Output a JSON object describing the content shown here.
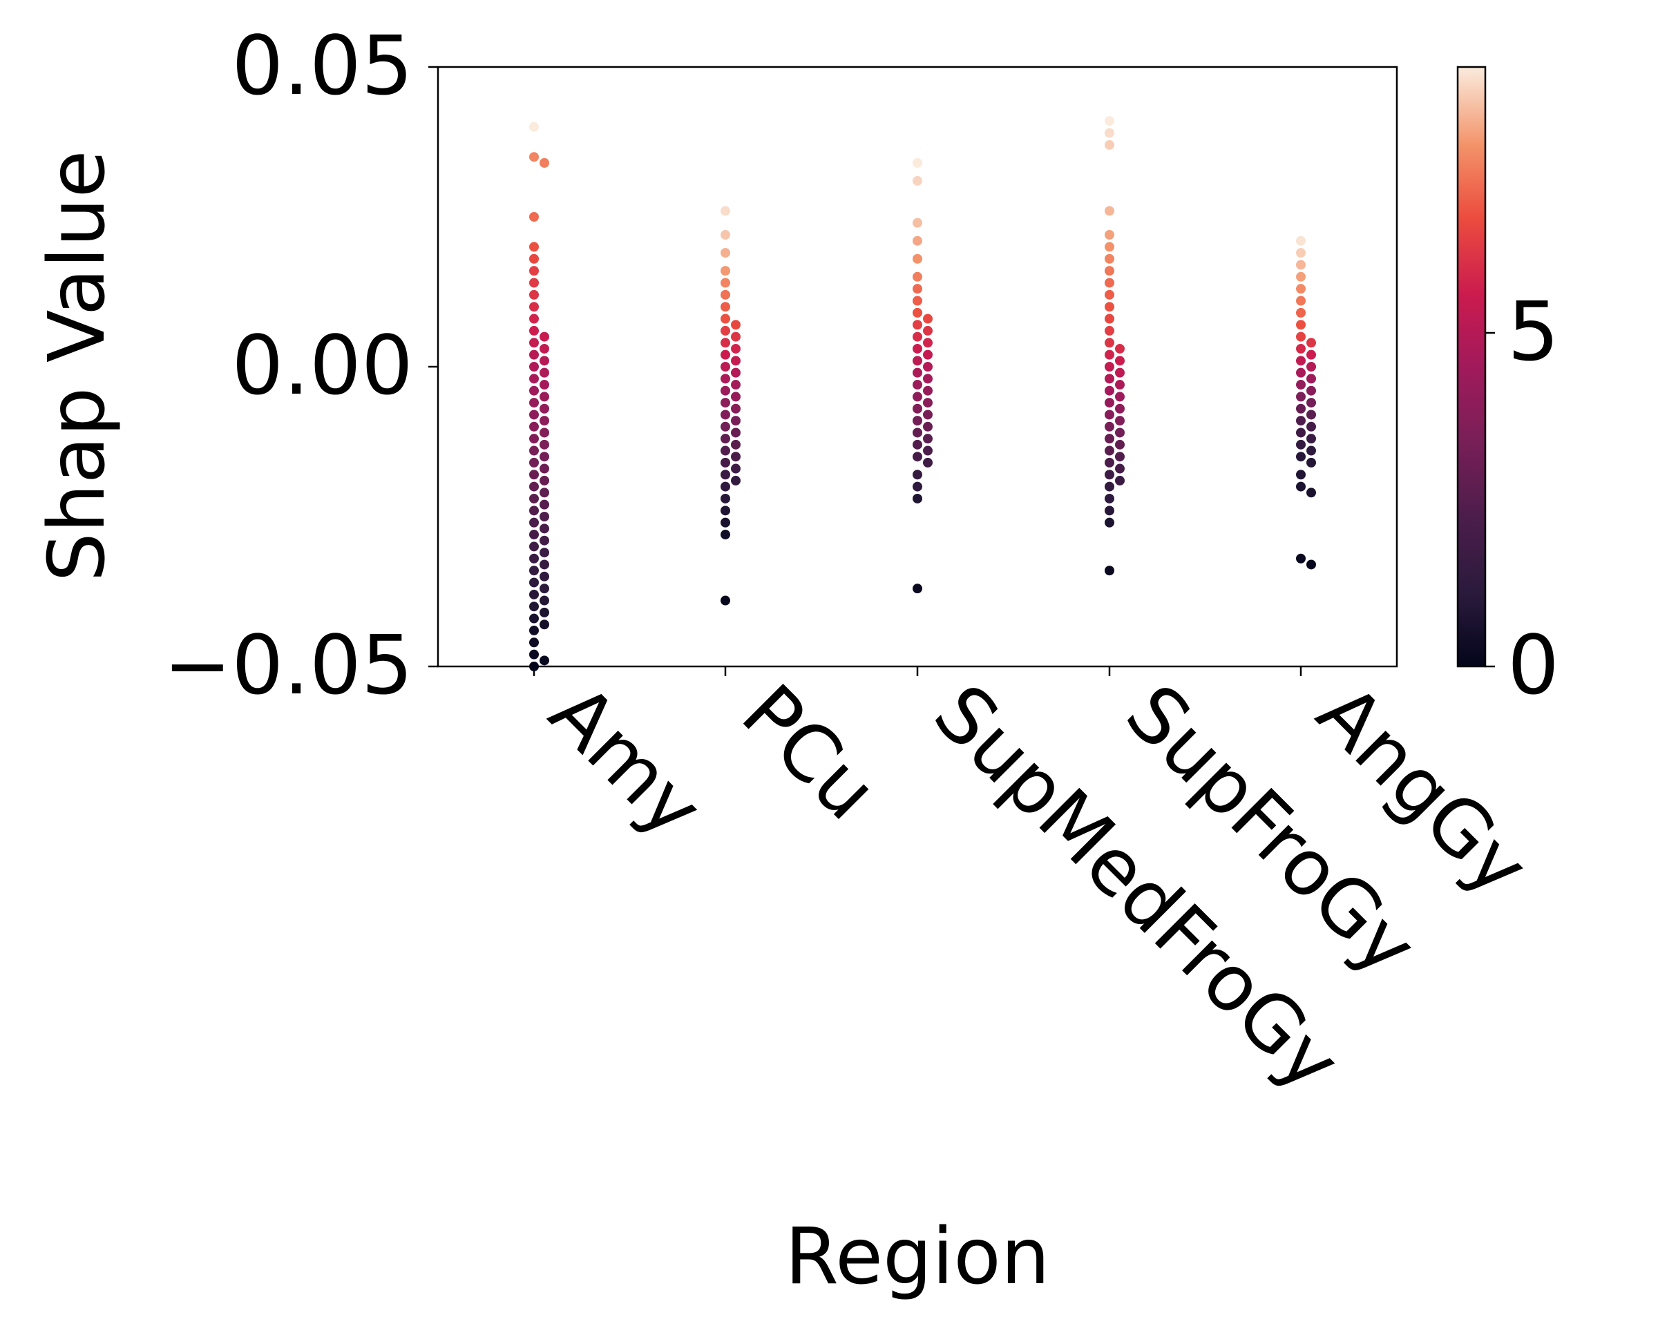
{
  "chart_data": {
    "type": "scatter",
    "subtype": "swarm",
    "xlabel": "Region",
    "ylabel": "Shap Value",
    "categories": [
      "Amy",
      "PCu",
      "SupMedFroGy",
      "SupFroGy",
      "AngGy"
    ],
    "ylim": [
      -0.05,
      0.05
    ],
    "yticks": [
      -0.05,
      0.0,
      0.05
    ],
    "ytick_labels": [
      "−0.05",
      "0.00",
      "0.05"
    ],
    "grid": false,
    "legend": "none",
    "colorbar": {
      "range": [
        0,
        9.0
      ],
      "ticks": [
        0,
        5
      ],
      "tick_labels": [
        "0",
        "5"
      ],
      "colormap": "rocket"
    },
    "series": [
      {
        "category": "Amy",
        "points": [
          [
            0.04,
            9.0
          ],
          [
            0.035,
            7.6
          ],
          [
            0.034,
            7.5
          ],
          [
            0.025,
            7.2
          ],
          [
            0.02,
            6.8
          ],
          [
            0.018,
            6.6
          ],
          [
            0.016,
            6.4
          ],
          [
            0.014,
            6.3
          ],
          [
            0.012,
            6.2
          ],
          [
            0.01,
            6.0
          ],
          [
            0.008,
            5.8
          ],
          [
            0.006,
            5.6
          ],
          [
            0.005,
            5.5
          ],
          [
            0.004,
            5.4
          ],
          [
            0.003,
            5.3
          ],
          [
            0.002,
            5.1
          ],
          [
            0.001,
            5.0
          ],
          [
            0.0,
            4.9
          ],
          [
            -0.001,
            4.8
          ],
          [
            -0.002,
            4.7
          ],
          [
            -0.003,
            4.6
          ],
          [
            -0.004,
            4.4
          ],
          [
            -0.005,
            4.3
          ],
          [
            -0.006,
            4.2
          ],
          [
            -0.007,
            4.1
          ],
          [
            -0.008,
            4.0
          ],
          [
            -0.009,
            3.9
          ],
          [
            -0.01,
            3.8
          ],
          [
            -0.011,
            3.7
          ],
          [
            -0.012,
            3.6
          ],
          [
            -0.013,
            3.5
          ],
          [
            -0.014,
            3.4
          ],
          [
            -0.015,
            3.3
          ],
          [
            -0.016,
            3.2
          ],
          [
            -0.017,
            3.1
          ],
          [
            -0.018,
            3.0
          ],
          [
            -0.019,
            2.9
          ],
          [
            -0.02,
            2.8
          ],
          [
            -0.021,
            2.7
          ],
          [
            -0.022,
            2.6
          ],
          [
            -0.023,
            2.5
          ],
          [
            -0.024,
            2.4
          ],
          [
            -0.025,
            2.3
          ],
          [
            -0.026,
            2.2
          ],
          [
            -0.027,
            2.1
          ],
          [
            -0.028,
            2.0
          ],
          [
            -0.029,
            1.9
          ],
          [
            -0.03,
            1.8
          ],
          [
            -0.031,
            1.7
          ],
          [
            -0.032,
            1.6
          ],
          [
            -0.033,
            1.5
          ],
          [
            -0.034,
            1.4
          ],
          [
            -0.035,
            1.3
          ],
          [
            -0.036,
            1.2
          ],
          [
            -0.037,
            1.1
          ],
          [
            -0.038,
            1.0
          ],
          [
            -0.039,
            0.9
          ],
          [
            -0.04,
            0.8
          ],
          [
            -0.041,
            0.7
          ],
          [
            -0.042,
            0.6
          ],
          [
            -0.043,
            0.5
          ],
          [
            -0.044,
            0.4
          ],
          [
            -0.046,
            0.3
          ],
          [
            -0.048,
            0.2
          ],
          [
            -0.049,
            0.1
          ],
          [
            -0.05,
            0.0
          ]
        ]
      },
      {
        "category": "PCu",
        "points": [
          [
            0.026,
            8.8
          ],
          [
            0.022,
            8.5
          ],
          [
            0.019,
            8.2
          ],
          [
            0.016,
            7.9
          ],
          [
            0.014,
            7.6
          ],
          [
            0.012,
            7.3
          ],
          [
            0.01,
            7.0
          ],
          [
            0.008,
            6.8
          ],
          [
            0.007,
            6.6
          ],
          [
            0.006,
            6.4
          ],
          [
            0.005,
            6.2
          ],
          [
            0.004,
            6.0
          ],
          [
            0.003,
            5.8
          ],
          [
            0.002,
            5.6
          ],
          [
            0.001,
            5.4
          ],
          [
            0.0,
            5.2
          ],
          [
            -0.001,
            5.0
          ],
          [
            -0.002,
            4.8
          ],
          [
            -0.003,
            4.6
          ],
          [
            -0.004,
            4.4
          ],
          [
            -0.005,
            4.2
          ],
          [
            -0.006,
            4.0
          ],
          [
            -0.007,
            3.8
          ],
          [
            -0.008,
            3.6
          ],
          [
            -0.009,
            3.4
          ],
          [
            -0.01,
            3.2
          ],
          [
            -0.011,
            3.0
          ],
          [
            -0.012,
            2.8
          ],
          [
            -0.013,
            2.6
          ],
          [
            -0.014,
            2.4
          ],
          [
            -0.015,
            2.2
          ],
          [
            -0.016,
            2.0
          ],
          [
            -0.017,
            1.8
          ],
          [
            -0.018,
            1.6
          ],
          [
            -0.019,
            1.4
          ],
          [
            -0.02,
            1.2
          ],
          [
            -0.022,
            1.0
          ],
          [
            -0.024,
            0.8
          ],
          [
            -0.026,
            0.6
          ],
          [
            -0.028,
            0.4
          ],
          [
            -0.039,
            0.1
          ]
        ]
      },
      {
        "category": "SupMedFroGy",
        "points": [
          [
            0.034,
            9.0
          ],
          [
            0.031,
            8.7
          ],
          [
            0.024,
            8.4
          ],
          [
            0.021,
            8.1
          ],
          [
            0.018,
            7.8
          ],
          [
            0.015,
            7.5
          ],
          [
            0.013,
            7.2
          ],
          [
            0.011,
            7.0
          ],
          [
            0.009,
            6.8
          ],
          [
            0.008,
            6.6
          ],
          [
            0.007,
            6.4
          ],
          [
            0.006,
            6.2
          ],
          [
            0.005,
            6.0
          ],
          [
            0.004,
            5.8
          ],
          [
            0.003,
            5.6
          ],
          [
            0.002,
            5.4
          ],
          [
            0.001,
            5.2
          ],
          [
            0.0,
            5.0
          ],
          [
            -0.001,
            4.8
          ],
          [
            -0.002,
            4.6
          ],
          [
            -0.003,
            4.4
          ],
          [
            -0.004,
            4.2
          ],
          [
            -0.005,
            4.0
          ],
          [
            -0.006,
            3.8
          ],
          [
            -0.007,
            3.6
          ],
          [
            -0.008,
            3.4
          ],
          [
            -0.009,
            3.2
          ],
          [
            -0.01,
            3.0
          ],
          [
            -0.011,
            2.8
          ],
          [
            -0.012,
            2.6
          ],
          [
            -0.013,
            2.4
          ],
          [
            -0.014,
            2.2
          ],
          [
            -0.015,
            2.0
          ],
          [
            -0.016,
            1.8
          ],
          [
            -0.018,
            1.5
          ],
          [
            -0.02,
            1.2
          ],
          [
            -0.022,
            0.8
          ],
          [
            -0.037,
            0.2
          ]
        ]
      },
      {
        "category": "SupFroGy",
        "points": [
          [
            0.041,
            9.0
          ],
          [
            0.039,
            8.8
          ],
          [
            0.037,
            8.6
          ],
          [
            0.026,
            8.3
          ],
          [
            0.022,
            8.0
          ],
          [
            0.02,
            7.8
          ],
          [
            0.018,
            7.6
          ],
          [
            0.016,
            7.4
          ],
          [
            0.014,
            7.2
          ],
          [
            0.012,
            7.0
          ],
          [
            0.01,
            6.8
          ],
          [
            0.008,
            6.6
          ],
          [
            0.006,
            6.4
          ],
          [
            0.004,
            6.2
          ],
          [
            0.003,
            6.0
          ],
          [
            0.002,
            5.8
          ],
          [
            0.001,
            5.6
          ],
          [
            0.0,
            5.4
          ],
          [
            -0.001,
            5.2
          ],
          [
            -0.002,
            5.0
          ],
          [
            -0.003,
            4.8
          ],
          [
            -0.004,
            4.6
          ],
          [
            -0.005,
            4.4
          ],
          [
            -0.006,
            4.2
          ],
          [
            -0.007,
            4.0
          ],
          [
            -0.008,
            3.8
          ],
          [
            -0.009,
            3.6
          ],
          [
            -0.01,
            3.4
          ],
          [
            -0.011,
            3.2
          ],
          [
            -0.012,
            3.0
          ],
          [
            -0.013,
            2.8
          ],
          [
            -0.014,
            2.6
          ],
          [
            -0.015,
            2.4
          ],
          [
            -0.016,
            2.2
          ],
          [
            -0.017,
            2.0
          ],
          [
            -0.018,
            1.8
          ],
          [
            -0.019,
            1.6
          ],
          [
            -0.02,
            1.4
          ],
          [
            -0.022,
            1.2
          ],
          [
            -0.024,
            1.0
          ],
          [
            -0.026,
            0.7
          ],
          [
            -0.034,
            0.2
          ]
        ]
      },
      {
        "category": "AngGy",
        "points": [
          [
            0.021,
            8.9
          ],
          [
            0.019,
            8.6
          ],
          [
            0.017,
            8.3
          ],
          [
            0.015,
            8.0
          ],
          [
            0.013,
            7.7
          ],
          [
            0.011,
            7.4
          ],
          [
            0.009,
            7.1
          ],
          [
            0.007,
            6.8
          ],
          [
            0.005,
            6.5
          ],
          [
            0.004,
            6.2
          ],
          [
            0.003,
            5.9
          ],
          [
            0.002,
            5.6
          ],
          [
            0.001,
            5.3
          ],
          [
            0.0,
            5.0
          ],
          [
            -0.001,
            4.7
          ],
          [
            -0.002,
            4.4
          ],
          [
            -0.003,
            4.1
          ],
          [
            -0.004,
            3.8
          ],
          [
            -0.005,
            3.5
          ],
          [
            -0.006,
            3.2
          ],
          [
            -0.007,
            2.9
          ],
          [
            -0.008,
            2.6
          ],
          [
            -0.009,
            2.3
          ],
          [
            -0.01,
            2.0
          ],
          [
            -0.011,
            1.8
          ],
          [
            -0.012,
            1.6
          ],
          [
            -0.013,
            1.4
          ],
          [
            -0.014,
            1.2
          ],
          [
            -0.015,
            1.0
          ],
          [
            -0.016,
            0.9
          ],
          [
            -0.018,
            0.8
          ],
          [
            -0.02,
            0.7
          ],
          [
            -0.021,
            0.6
          ],
          [
            -0.032,
            0.2
          ],
          [
            -0.033,
            0.1
          ]
        ]
      }
    ]
  }
}
